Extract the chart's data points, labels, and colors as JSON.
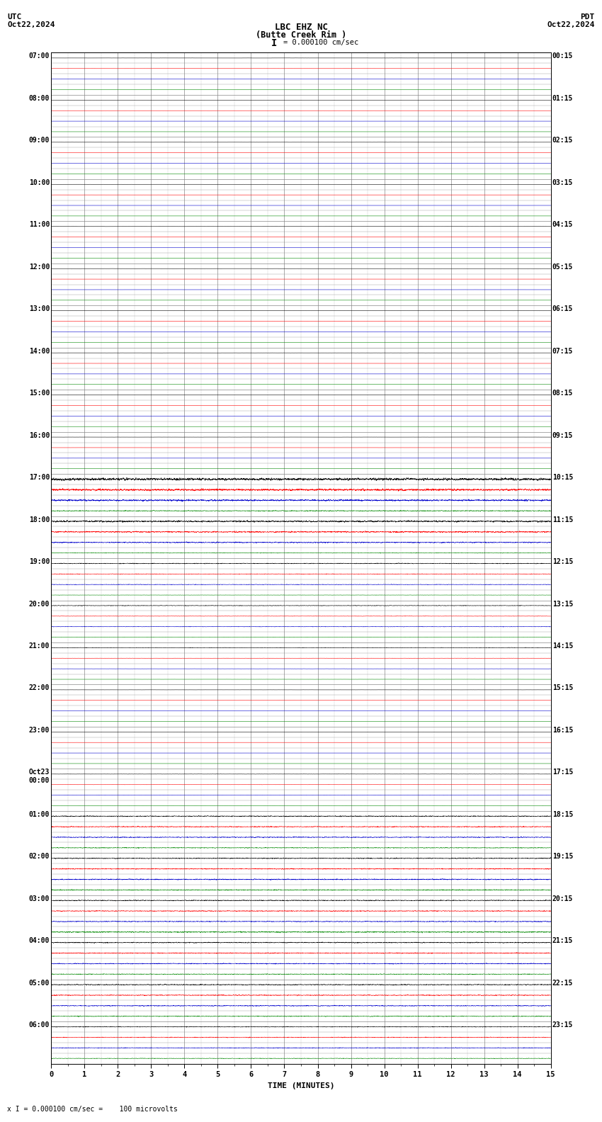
{
  "title_line1": "LBC EHZ NC",
  "title_line2": "(Butte Creek Rim )",
  "scale_label": "I = 0.000100 cm/sec",
  "utc_label": "UTC",
  "pdt_label": "PDT",
  "date_left": "Oct22,2024",
  "date_right": "Oct22,2024",
  "xlabel": "TIME (MINUTES)",
  "footer": "x I = 0.000100 cm/sec =    100 microvolts",
  "left_times": [
    "07:00",
    "08:00",
    "09:00",
    "10:00",
    "11:00",
    "12:00",
    "13:00",
    "14:00",
    "15:00",
    "16:00",
    "17:00",
    "18:00",
    "19:00",
    "20:00",
    "21:00",
    "22:00",
    "23:00",
    "Oct23\n00:00",
    "01:00",
    "02:00",
    "03:00",
    "04:00",
    "05:00",
    "06:00"
  ],
  "right_times": [
    "00:15",
    "01:15",
    "02:15",
    "03:15",
    "04:15",
    "05:15",
    "06:15",
    "07:15",
    "08:15",
    "09:15",
    "10:15",
    "11:15",
    "12:15",
    "13:15",
    "14:15",
    "15:15",
    "16:15",
    "17:15",
    "18:15",
    "19:15",
    "20:15",
    "21:15",
    "22:15",
    "23:15"
  ],
  "n_rows": 24,
  "n_traces_per_row": 4,
  "bg_color": "#ffffff",
  "grid_color": "#888888",
  "xmin": 0,
  "xmax": 15,
  "xticks": [
    0,
    1,
    2,
    3,
    4,
    5,
    6,
    7,
    8,
    9,
    10,
    11,
    12,
    13,
    14,
    15
  ],
  "trace_colors_early": [
    "#000000",
    "#ff0000",
    "#0000cc",
    "#008800"
  ],
  "trace_colors_late": [
    "#000000",
    "#ff0000",
    "#0000cc",
    "#008800"
  ],
  "row_amplitudes": [
    0.01,
    0.008,
    0.008,
    0.008,
    0.01,
    0.008,
    0.012,
    0.008,
    0.008,
    0.008,
    0.15,
    0.12,
    0.08,
    0.06,
    0.04,
    0.008,
    0.008,
    0.02,
    0.08,
    0.08,
    0.08,
    0.08,
    0.08,
    0.06
  ],
  "n_points": 5000
}
